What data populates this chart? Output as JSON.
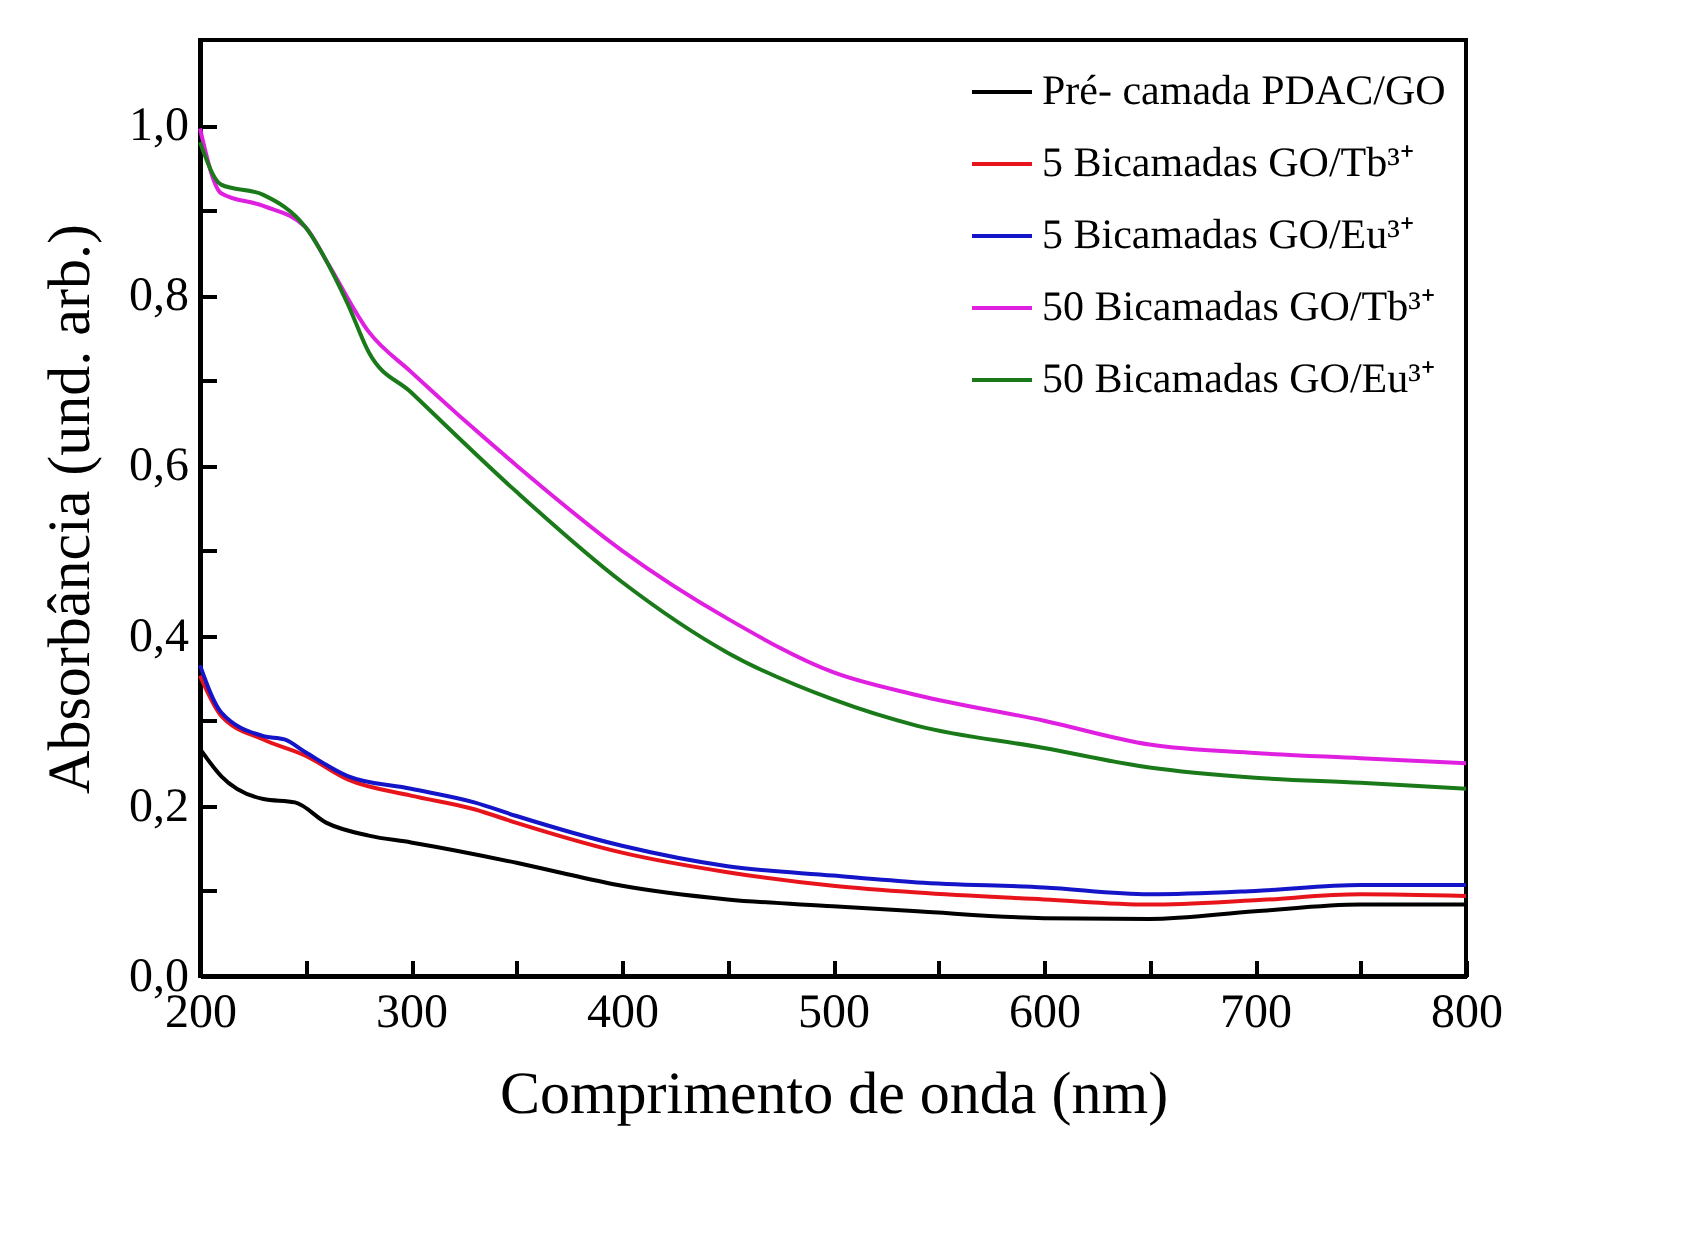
{
  "chart_data": {
    "type": "line",
    "xlabel": "Comprimento de onda (nm)",
    "ylabel": "Absorbância (und. arb.)",
    "xlim": [
      200,
      800
    ],
    "ylim": [
      0,
      1.1
    ],
    "xticks": [
      200,
      {
        "value": 250,
        "label": null
      },
      300,
      {
        "value": 350,
        "label": null
      },
      400,
      {
        "value": 450,
        "label": null
      },
      500,
      {
        "value": 550,
        "label": null
      },
      600,
      {
        "value": 650,
        "label": null
      },
      700,
      {
        "value": 750,
        "label": null
      },
      800
    ],
    "yticks": [
      {
        "value": 0,
        "label": "0,0"
      },
      {
        "value": 0.1,
        "label": null
      },
      {
        "value": 0.2,
        "label": "0,2"
      },
      {
        "value": 0.3,
        "label": null
      },
      {
        "value": 0.4,
        "label": "0,4"
      },
      {
        "value": 0.5,
        "label": null
      },
      {
        "value": 0.6,
        "label": "0,6"
      },
      {
        "value": 0.7,
        "label": null
      },
      {
        "value": 0.8,
        "label": "0,8"
      },
      {
        "value": 0.9,
        "label": null
      },
      {
        "value": 1.0,
        "label": "1,0"
      }
    ],
    "grid": false,
    "legend": "top right",
    "line_style": "solid",
    "series": [
      {
        "name": "Pré- camada PDAC/GO",
        "color": "#000000",
        "x": [
          200,
          210,
          230,
          245,
          260,
          280,
          300,
          350,
          370,
          400,
          450,
          500,
          540,
          600,
          650,
          700,
          750,
          800
        ],
        "values": [
          0.267,
          0.235,
          0.208,
          0.204,
          0.18,
          0.165,
          0.157,
          0.133,
          0.122,
          0.106,
          0.09,
          0.082,
          0.076,
          0.068,
          0.067,
          0.076,
          0.084,
          0.084
        ]
      },
      {
        "name": "5 Bicamadas GO/Tb³⁺",
        "color": "#e8141c",
        "x": [
          200,
          210,
          230,
          250,
          270,
          300,
          330,
          350,
          400,
          450,
          500,
          540,
          600,
          650,
          700,
          750,
          800
        ],
        "values": [
          0.353,
          0.306,
          0.278,
          0.259,
          0.231,
          0.212,
          0.196,
          0.18,
          0.145,
          0.122,
          0.106,
          0.098,
          0.09,
          0.084,
          0.089,
          0.096,
          0.094
        ]
      },
      {
        "name": "5 Bicamadas GO/Eu³⁺",
        "color": "#1414c8",
        "x": [
          200,
          210,
          230,
          240,
          250,
          270,
          300,
          330,
          350,
          400,
          450,
          500,
          540,
          600,
          650,
          700,
          750,
          800
        ],
        "values": [
          0.365,
          0.31,
          0.282,
          0.278,
          0.263,
          0.235,
          0.22,
          0.204,
          0.188,
          0.153,
          0.129,
          0.118,
          0.11,
          0.104,
          0.096,
          0.1,
          0.107,
          0.107
        ]
      },
      {
        "name": "50 Bicamadas GO/Tb³⁺",
        "color": "#e020e0",
        "x": [
          200,
          210,
          230,
          250,
          260,
          280,
          300,
          350,
          400,
          450,
          500,
          540,
          600,
          650,
          700,
          750,
          800
        ],
        "values": [
          0.996,
          0.92,
          0.905,
          0.88,
          0.84,
          0.757,
          0.71,
          0.6,
          0.5,
          0.42,
          0.357,
          0.33,
          0.3,
          0.272,
          0.262,
          0.256,
          0.25
        ]
      },
      {
        "name": "50 Bicamadas GO/Eu³⁺",
        "color": "#1a7a1a",
        "x": [
          200,
          210,
          230,
          250,
          270,
          280,
          300,
          350,
          400,
          450,
          500,
          540,
          600,
          650,
          700,
          750,
          800
        ],
        "values": [
          0.98,
          0.93,
          0.918,
          0.88,
          0.79,
          0.733,
          0.686,
          0.569,
          0.463,
          0.38,
          0.325,
          0.294,
          0.268,
          0.245,
          0.233,
          0.227,
          0.22
        ]
      }
    ]
  }
}
